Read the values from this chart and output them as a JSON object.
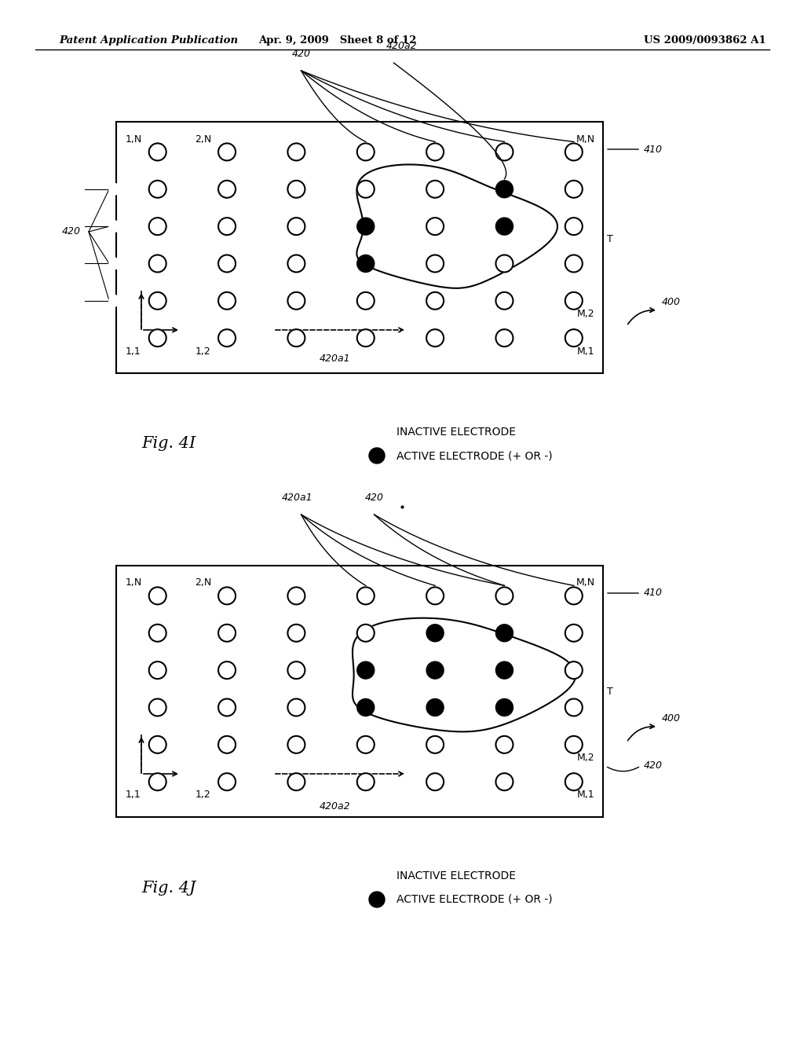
{
  "bg_color": "#ffffff",
  "header_left": "Patent Application Publication",
  "header_mid": "Apr. 9, 2009   Sheet 8 of 12",
  "header_right": "US 2009/0093862 A1",
  "fig_I_label": "Fig. 4I",
  "fig_J_label": "Fig. 4J",
  "legend_inactive": "INACTIVE ELECTRODE",
  "legend_active": "ACTIVE ELECTRODE (+ OR -)",
  "rows": 6,
  "cols": 7
}
